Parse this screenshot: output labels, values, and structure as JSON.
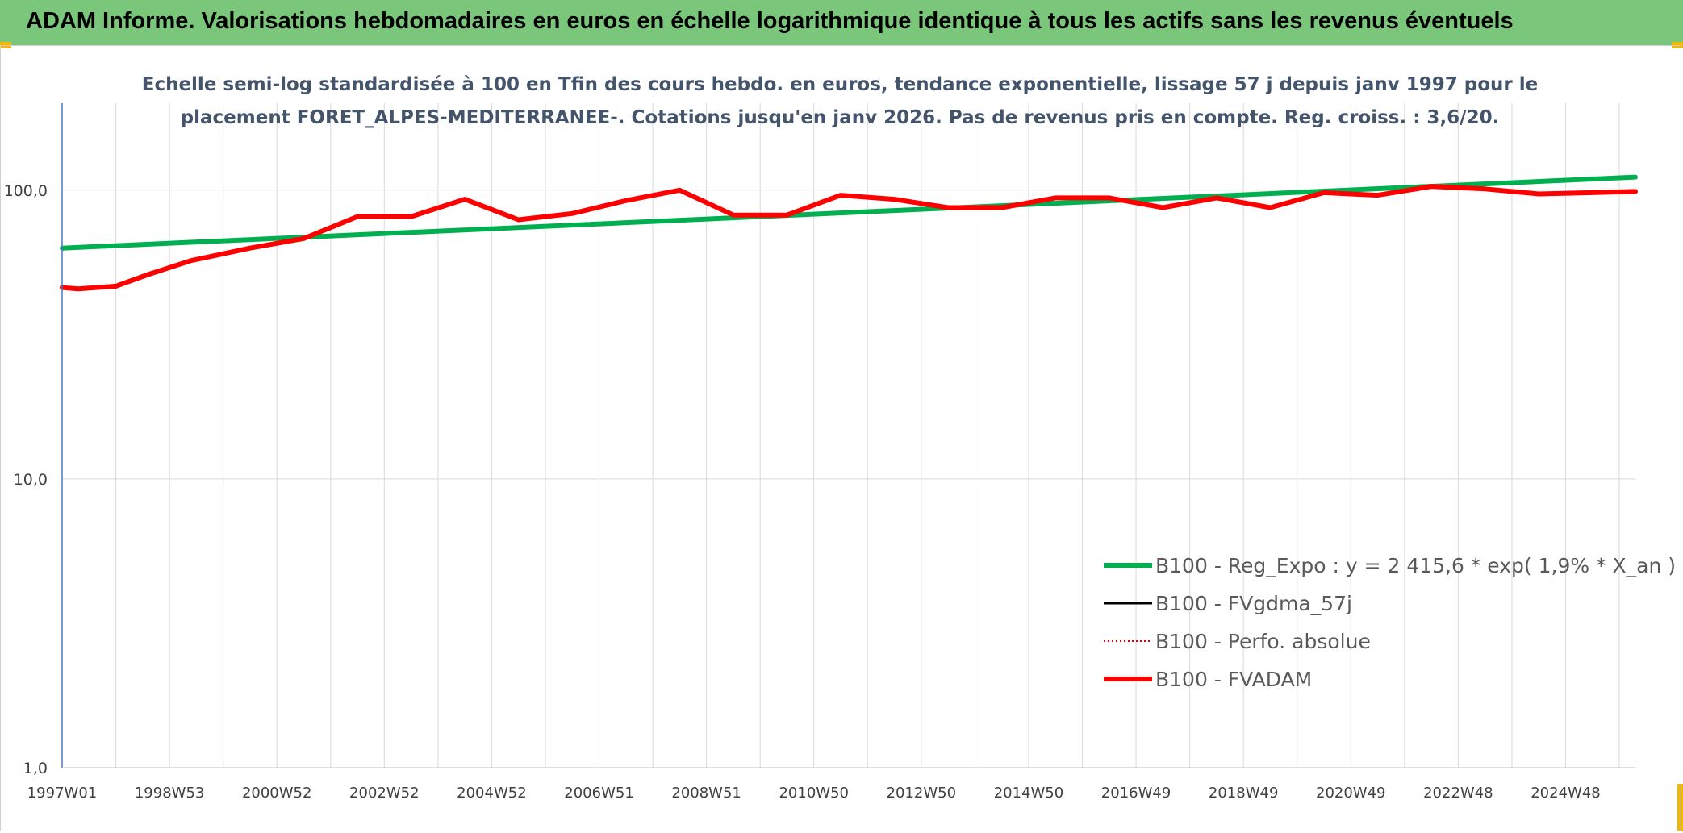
{
  "header": {
    "title": "ADAM Informe. Valorisations hebdomadaires en euros en échelle logarithmique identique à tous les actifs sans les revenus éventuels",
    "background": "#7ac67a",
    "corner_color": "#f2b900"
  },
  "chart_data": {
    "type": "line",
    "title": "",
    "subtitle_lines": [
      "Echelle semi-log standardisée à 100 en Tfin des cours hebdo. en euros, tendance exponentielle, lissage 57 j depuis janv 1997 pour le",
      "placement FORET_ALPES-MEDITERRANEE-. Cotations jusqu'en janv 2026. Pas de revenus pris en compte. Reg. croiss. : 3,6/20."
    ],
    "xlabel": "",
    "ylabel": "",
    "y_scale": "log",
    "ylim": [
      1,
      200
    ],
    "y_ticks": [
      {
        "value": 1,
        "label": "1,0"
      },
      {
        "value": 10,
        "label": "10,0"
      },
      {
        "value": 100,
        "label": "100,0"
      }
    ],
    "xlim": [
      1997.0,
      2026.3
    ],
    "x_ticks": [
      {
        "year": 1997.0,
        "label": "1997W01"
      },
      {
        "year": 1999.0,
        "label": "1998W53"
      },
      {
        "year": 2001.0,
        "label": "2000W52"
      },
      {
        "year": 2003.0,
        "label": "2002W52"
      },
      {
        "year": 2005.0,
        "label": "2004W52"
      },
      {
        "year": 2007.0,
        "label": "2006W51"
      },
      {
        "year": 2009.0,
        "label": "2008W51"
      },
      {
        "year": 2011.0,
        "label": "2010W50"
      },
      {
        "year": 2013.0,
        "label": "2012W50"
      },
      {
        "year": 2015.0,
        "label": "2014W50"
      },
      {
        "year": 2017.0,
        "label": "2016W49"
      },
      {
        "year": 2019.0,
        "label": "2018W49"
      },
      {
        "year": 2021.0,
        "label": "2020W49"
      },
      {
        "year": 2023.0,
        "label": "2022W48"
      },
      {
        "year": 2025.0,
        "label": "2024W48"
      }
    ],
    "grid": "vertical",
    "legend_position": "bottom-right",
    "series": [
      {
        "name": "B100 - Reg_Expo : y = 2 415,6 * exp( 1,9% *  X_an )",
        "color": "#00b050",
        "style": "solid",
        "x": [
          1997.0,
          2026.3
        ],
        "y": [
          63,
          111
        ]
      },
      {
        "name": "B100 - FVgdma_57j",
        "color": "#000000",
        "style": "solid",
        "x": [],
        "y": []
      },
      {
        "name": "B100 - Perfo. absolue",
        "color": "#e00000",
        "style": "dotted",
        "x": [],
        "y": []
      },
      {
        "name": "B100 - FVADAM",
        "color": "#ff0000",
        "style": "solid",
        "x": [
          1997.0,
          1997.3,
          1998.0,
          1998.6,
          1999.4,
          2000.5,
          2001.5,
          2002.5,
          2003.5,
          2004.5,
          2005.5,
          2006.5,
          2007.5,
          2008.5,
          2009.5,
          2010.5,
          2011.5,
          2012.5,
          2013.5,
          2014.5,
          2015.5,
          2016.5,
          2017.5,
          2018.5,
          2019.5,
          2020.5,
          2021.5,
          2022.5,
          2023.5,
          2024.5,
          2025.5,
          2026.3
        ],
        "y": [
          46,
          45.5,
          46.5,
          51,
          57,
          63,
          68,
          81,
          81,
          93,
          79,
          83,
          92,
          100,
          82,
          82,
          96,
          93,
          87,
          87,
          94,
          94,
          87,
          94,
          87,
          98,
          96,
          103,
          101,
          97,
          98,
          99
        ]
      }
    ]
  }
}
